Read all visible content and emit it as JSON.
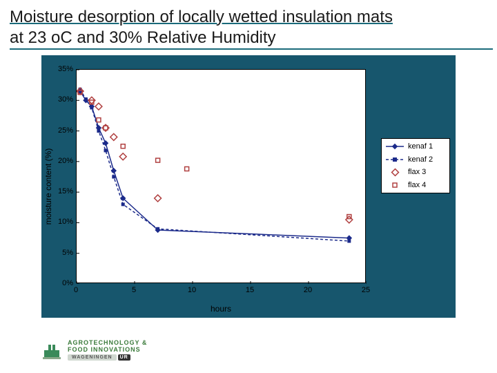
{
  "title": {
    "line1": "Moisture desorption of locally wetted insulation mats",
    "line2": "at    23 oC and  30% Relative Humidity"
  },
  "chart": {
    "type": "scatter-line",
    "background_color": "#17566d",
    "plot_background": "#ffffff",
    "axis_color": "#000000",
    "text_color": "#000000",
    "font_size_axis": 11,
    "font_size_label": 12,
    "xlabel": "hours",
    "ylabel": "moisture content (%)",
    "xlim": [
      0,
      25
    ],
    "ylim": [
      0,
      0.35
    ],
    "xticks": [
      0,
      5,
      10,
      15,
      20,
      25
    ],
    "yticks_labels": [
      "0%",
      "5%",
      "10%",
      "15%",
      "20%",
      "25%",
      "30%",
      "35%"
    ],
    "yticks_values": [
      0,
      0.05,
      0.1,
      0.15,
      0.2,
      0.25,
      0.3,
      0.35
    ],
    "series": [
      {
        "name": "kenaf 1",
        "kind": "line+marker",
        "color": "#1b2a8a",
        "line_width": 1.5,
        "marker": "diamond-filled",
        "marker_size": 6,
        "x": [
          0.3,
          0.8,
          1.3,
          1.9,
          2.5,
          3.2,
          4.0,
          7.0,
          23.5
        ],
        "y": [
          0.315,
          0.3,
          0.29,
          0.255,
          0.23,
          0.185,
          0.14,
          0.088,
          0.075
        ]
      },
      {
        "name": "kenaf 2",
        "kind": "line+marker",
        "color": "#1b2a8a",
        "line_width": 1.5,
        "dash": "4,3",
        "marker": "square-filled",
        "marker_size": 5,
        "x": [
          0.3,
          0.8,
          1.3,
          1.9,
          2.5,
          3.2,
          4.0,
          7.0,
          23.5
        ],
        "y": [
          0.318,
          0.302,
          0.288,
          0.25,
          0.218,
          0.175,
          0.13,
          0.09,
          0.07
        ]
      },
      {
        "name": "flax 3",
        "kind": "marker",
        "color": "#b04040",
        "marker": "diamond-open",
        "marker_size": 7,
        "x": [
          0.3,
          1.3,
          1.9,
          2.5,
          3.2,
          4.0,
          7.0,
          23.5
        ],
        "y": [
          0.315,
          0.3,
          0.29,
          0.255,
          0.24,
          0.208,
          0.14,
          0.105
        ]
      },
      {
        "name": "flax 4",
        "kind": "marker",
        "color": "#b04040",
        "marker": "square-open",
        "marker_size": 6,
        "x": [
          0.3,
          1.3,
          1.9,
          2.5,
          4.0,
          7.0,
          9.5,
          23.5
        ],
        "y": [
          0.313,
          0.297,
          0.268,
          0.255,
          0.225,
          0.202,
          0.188,
          0.11
        ]
      }
    ],
    "legend": {
      "position": "right",
      "background": "#ffffff",
      "border": "#000000",
      "font_size": 11,
      "items": [
        "kenaf 1",
        "kenaf 2",
        "flax 3",
        "flax 4"
      ]
    }
  },
  "logo": {
    "line1": "AGROTECHNOLOGY &",
    "line2": "FOOD INNOVATIONS",
    "sub": "WAGENINGEN",
    "badge": "UR",
    "mark_color": "#3a8a5a"
  }
}
